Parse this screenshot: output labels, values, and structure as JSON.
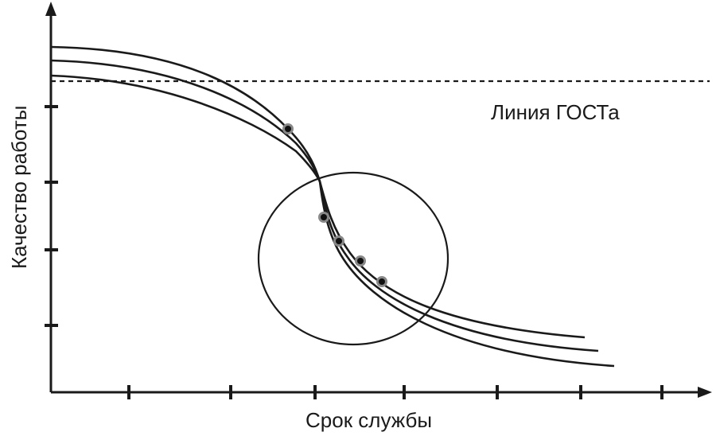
{
  "axes": {
    "x_label": "Срок службы",
    "y_label": "Качество работы"
  },
  "gost_line": {
    "label": "Линия ГОСТа"
  },
  "colors": {
    "ink": "#1a1a1a",
    "point_ring": "#888888",
    "point_core": "#111111",
    "background": "#ffffff"
  }
}
